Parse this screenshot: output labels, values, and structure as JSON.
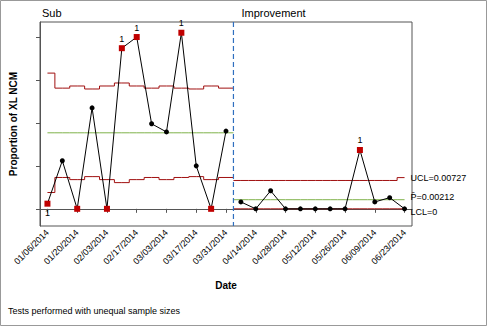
{
  "chart_data": {
    "type": "line",
    "y_label": "Proportion of XL NCM",
    "x_label": "Date",
    "footnote": "Tests performed with unequal sample sizes",
    "stages": [
      {
        "label": "Sub",
        "count": 13
      },
      {
        "label": "Improvement",
        "count": 12
      }
    ],
    "divider": {
      "color": "#2f6fbf",
      "line_style": "dashed"
    },
    "categories": [
      "01/06/2014",
      null,
      "01/20/2014",
      null,
      "02/03/2014",
      null,
      "02/17/2014",
      null,
      "03/03/2014",
      null,
      "03/17/2014",
      null,
      "03/31/2014",
      null,
      "04/14/2014",
      null,
      "04/28/2014",
      null,
      "05/12/2014",
      null,
      "05/26/2014",
      null,
      "06/09/2014",
      null,
      "06/23/2014"
    ],
    "ylim": [
      -0.004,
      0.0435
    ],
    "yticks": [
      0,
      0.01,
      0.02,
      0.03,
      0.04
    ],
    "grid": false,
    "tick_labels": "x",
    "series": [
      {
        "type": "line",
        "color": "#000000",
        "marker": "circle",
        "values": [
          0.0012,
          0.0112,
          0,
          0.0235,
          0,
          0.0374,
          0.04,
          0.0198,
          0.0179,
          0.041,
          0.01,
          0,
          0.0181,
          0.0016,
          0,
          0.0042,
          0,
          0,
          0,
          0,
          0,
          0.0137,
          0.0016,
          0.0026,
          0
        ],
        "colors": [
          "#c00000",
          "#000000",
          "#c00000",
          "#000000",
          "#c00000",
          "#c00000",
          "#c00000",
          "#000000",
          "#000000",
          "#c00000",
          "#000000",
          "#c00000",
          "#000000",
          "#000000",
          "#000000",
          "#000000",
          "#000000",
          "#000000",
          "#000000",
          "#000000",
          "#000000",
          "#c00000",
          "#000000",
          "#000000",
          "#000000"
        ],
        "point_labels": [
          "1",
          null,
          null,
          null,
          null,
          "1",
          "1",
          null,
          null,
          "1",
          null,
          null,
          null,
          null,
          null,
          null,
          null,
          null,
          null,
          null,
          null,
          "1",
          null,
          null,
          null
        ]
      },
      {
        "type": "step",
        "color": "#a01010",
        "line_style": "solid",
        "end_label": "UCL=0.00727",
        "values": [
          0.0316,
          0.0281,
          0.0286,
          0.0279,
          0.0286,
          0.0293,
          0.0286,
          0.0281,
          0.0286,
          0.0281,
          0.0279,
          0.0286,
          0.0281,
          0.0066,
          0.0066,
          0.0066,
          0.0066,
          0.0066,
          0.0066,
          0.0066,
          0.0066,
          0.0066,
          0.0066,
          0.0066,
          0.00727
        ]
      },
      {
        "type": "step",
        "color": "#7fb24a",
        "line_style": "solid",
        "end_label": "P̄=0.00212",
        "values": [
          0.0177,
          0.0177,
          0.0177,
          0.0177,
          0.0177,
          0.0177,
          0.0177,
          0.0177,
          0.0177,
          0.0177,
          0.0177,
          0.0177,
          0.0177,
          0.00212,
          0.00212,
          0.00212,
          0.00212,
          0.00212,
          0.00212,
          0.00212,
          0.00212,
          0.00212,
          0.00212,
          0.00212,
          0.00212
        ]
      },
      {
        "type": "step",
        "color": "#a01010",
        "line_style": "solid",
        "end_label": "LCL=0",
        "values": [
          0.0038,
          0.0073,
          0.0068,
          0.0075,
          0.0068,
          0.0061,
          0.0068,
          0.0073,
          0.0068,
          0.0073,
          0.0075,
          0.0068,
          0.0073,
          0,
          0,
          0,
          0,
          0,
          0,
          0,
          0,
          0,
          0,
          0,
          0
        ]
      }
    ]
  }
}
